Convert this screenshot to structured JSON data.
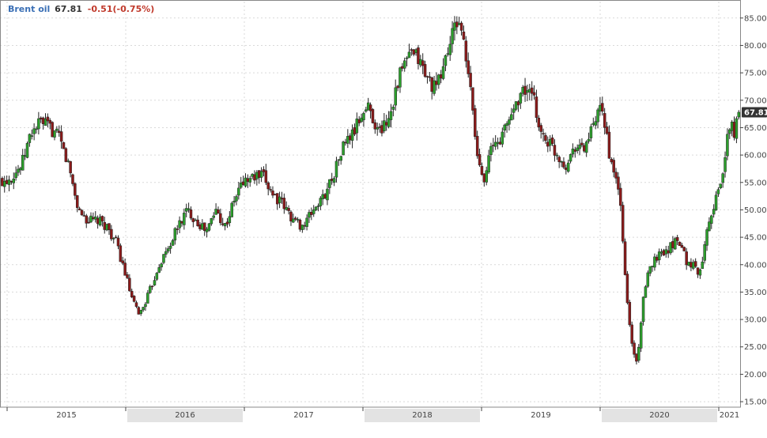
{
  "legend": {
    "name": "Brent oil",
    "price": "67.81",
    "change": "-0.51(-0.75%)"
  },
  "colors": {
    "up": "#2ca02c",
    "down": "#8b1a1a",
    "wick": "#222222",
    "grid": "#d9d9d9",
    "axis": "#444444",
    "last_badge_bg": "#333333",
    "last_badge_fg": "#ffffff",
    "year_band": "#e3e3e3",
    "legend_name": "#3a6fb5",
    "legend_change": "#c0392b"
  },
  "chart_data": {
    "type": "candlestick",
    "instrument": "Brent oil",
    "interval": "weekly",
    "last_price": 67.81,
    "change": -0.51,
    "change_pct": -0.75,
    "y_axis": {
      "position": "right",
      "min": 14,
      "max": 88,
      "ticks": [
        "15.00",
        "20.00",
        "25.00",
        "30.00",
        "35.00",
        "40.00",
        "45.00",
        "50.00",
        "55.00",
        "60.00",
        "65.00",
        "70.00",
        "75.00",
        "80.00",
        "85.00"
      ]
    },
    "x_axis": {
      "start": 2014.94,
      "end": 2021.18,
      "labels": [
        {
          "label": "2015",
          "pos": 2015.5,
          "band": false
        },
        {
          "label": "2016",
          "pos": 2016.5,
          "band": true
        },
        {
          "label": "2017",
          "pos": 2017.5,
          "band": false
        },
        {
          "label": "2018",
          "pos": 2018.5,
          "band": true
        },
        {
          "label": "2019",
          "pos": 2019.5,
          "band": false
        },
        {
          "label": "2020",
          "pos": 2020.5,
          "band": true
        },
        {
          "label": "2021",
          "pos": 2021.09,
          "band": false
        }
      ]
    },
    "grid": true,
    "anchors": [
      [
        2014.94,
        55
      ],
      [
        2015.03,
        56
      ],
      [
        2015.12,
        58
      ],
      [
        2015.2,
        64
      ],
      [
        2015.28,
        66
      ],
      [
        2015.36,
        65
      ],
      [
        2015.44,
        63
      ],
      [
        2015.52,
        58
      ],
      [
        2015.6,
        50
      ],
      [
        2015.68,
        48
      ],
      [
        2015.76,
        48
      ],
      [
        2015.84,
        47
      ],
      [
        2015.92,
        44
      ],
      [
        2016.0,
        38
      ],
      [
        2016.06,
        33
      ],
      [
        2016.12,
        31
      ],
      [
        2016.2,
        35
      ],
      [
        2016.28,
        40
      ],
      [
        2016.36,
        43
      ],
      [
        2016.44,
        47
      ],
      [
        2016.52,
        50
      ],
      [
        2016.6,
        48
      ],
      [
        2016.68,
        46
      ],
      [
        2016.76,
        50
      ],
      [
        2016.84,
        47
      ],
      [
        2016.92,
        52
      ],
      [
        2016.98,
        55
      ],
      [
        2017.08,
        56
      ],
      [
        2017.16,
        56
      ],
      [
        2017.24,
        53
      ],
      [
        2017.32,
        51
      ],
      [
        2017.42,
        48
      ],
      [
        2017.5,
        47
      ],
      [
        2017.58,
        50
      ],
      [
        2017.66,
        52
      ],
      [
        2017.76,
        57
      ],
      [
        2017.84,
        62
      ],
      [
        2017.92,
        64
      ],
      [
        2017.98,
        67
      ],
      [
        2018.05,
        69
      ],
      [
        2018.13,
        64
      ],
      [
        2018.22,
        67
      ],
      [
        2018.3,
        74
      ],
      [
        2018.38,
        78
      ],
      [
        2018.46,
        78
      ],
      [
        2018.54,
        74
      ],
      [
        2018.62,
        72
      ],
      [
        2018.7,
        78
      ],
      [
        2018.77,
        83
      ],
      [
        2018.82,
        85
      ],
      [
        2018.86,
        78
      ],
      [
        2018.92,
        70
      ],
      [
        2018.96,
        60
      ],
      [
        2019.02,
        56
      ],
      [
        2019.08,
        61
      ],
      [
        2019.16,
        63
      ],
      [
        2019.24,
        67
      ],
      [
        2019.32,
        71
      ],
      [
        2019.38,
        72
      ],
      [
        2019.44,
        70
      ],
      [
        2019.5,
        64
      ],
      [
        2019.58,
        62
      ],
      [
        2019.64,
        60
      ],
      [
        2019.72,
        58
      ],
      [
        2019.78,
        62
      ],
      [
        2019.86,
        61
      ],
      [
        2019.92,
        64
      ],
      [
        2020.0,
        68
      ],
      [
        2020.04,
        66
      ],
      [
        2020.1,
        57
      ],
      [
        2020.16,
        54
      ],
      [
        2020.22,
        35
      ],
      [
        2020.27,
        25
      ],
      [
        2020.31,
        22
      ],
      [
        2020.36,
        33
      ],
      [
        2020.42,
        40
      ],
      [
        2020.5,
        42
      ],
      [
        2020.58,
        43
      ],
      [
        2020.66,
        45
      ],
      [
        2020.74,
        40
      ],
      [
        2020.8,
        40
      ],
      [
        2020.84,
        38
      ],
      [
        2020.9,
        47
      ],
      [
        2020.96,
        51
      ],
      [
        2021.02,
        55
      ],
      [
        2021.06,
        61
      ],
      [
        2021.1,
        66
      ],
      [
        2021.13,
        64
      ],
      [
        2021.16,
        67
      ],
      [
        2021.18,
        67.81
      ]
    ]
  }
}
